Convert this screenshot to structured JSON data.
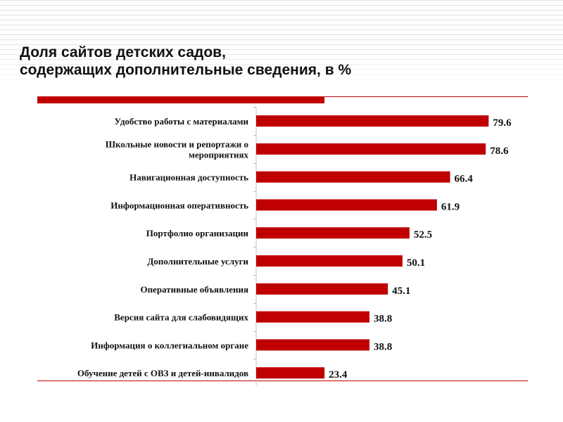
{
  "chart_data": {
    "type": "bar",
    "orientation": "horizontal",
    "title_lines": [
      "Доля сайтов детских садов,",
      "содержащих дополнительные сведения, в %"
    ],
    "categories": [
      [
        "Удобство работы с материалами"
      ],
      [
        "Школьные новости и репортажи о",
        "мероприятиях"
      ],
      [
        "Навигационная доступность"
      ],
      [
        "Информационная оперативность"
      ],
      [
        "Портфолио организации"
      ],
      [
        "Дополнительные услуги"
      ],
      [
        "Оперативные объявления"
      ],
      [
        "Версия сайта для слабовидящих"
      ],
      [
        "Информация о коллегиальном органе"
      ],
      [
        "Обучение детей с ОВЗ и детей-инвалидов"
      ]
    ],
    "values": [
      79.6,
      78.6,
      66.4,
      61.9,
      52.5,
      50.1,
      45.1,
      38.8,
      38.8,
      23.4
    ],
    "xlim": [
      0,
      100
    ],
    "grid": false,
    "legend": "none",
    "bar_color": "#c00000",
    "accent_color": "#c00000"
  }
}
